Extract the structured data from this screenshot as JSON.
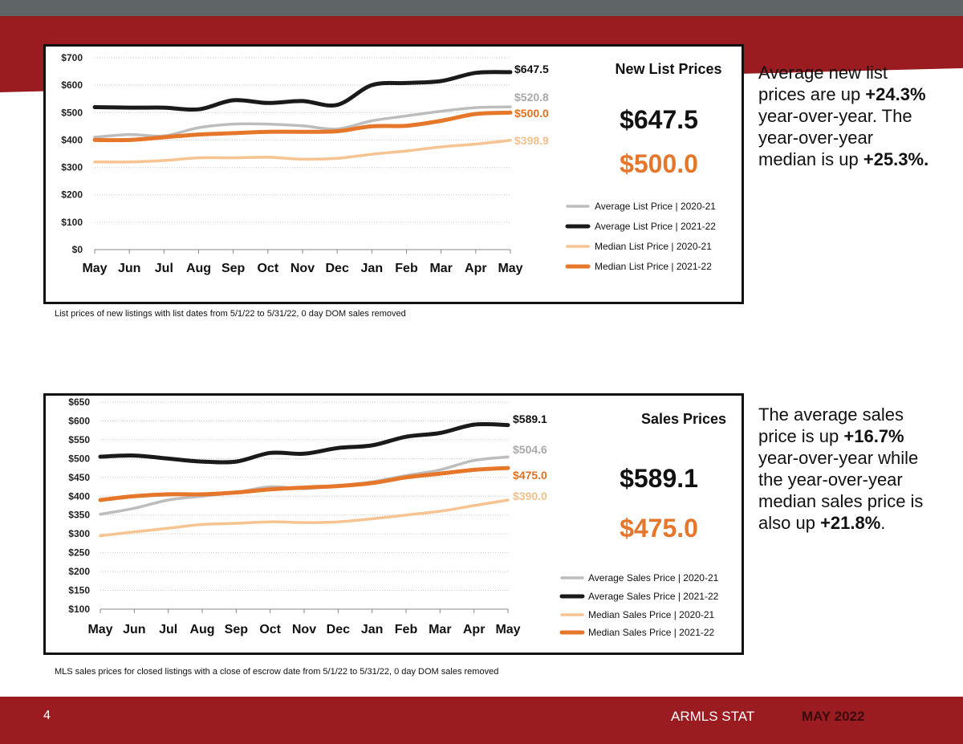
{
  "footer": {
    "page_number": "4",
    "publication": "ARMLS STAT",
    "date": "MAY 2022"
  },
  "colors": {
    "brand_red": "#9a1b20",
    "top_bar": "#5f6466",
    "avg_prev": "#bdbdbd",
    "avg_curr": "#1a1a1a",
    "med_prev": "#f6c391",
    "med_curr": "#e5762a"
  },
  "new_list": {
    "caption": "List prices of new listings with list dates from 5/1/22 to 5/31/22, 0 day DOM sales removed",
    "text": {
      "t1": "Average new list prices are up ",
      "v1": "+24.3%",
      "t2": " year-over-year. The year-over-year median is up ",
      "v2": "+25.3%."
    }
  },
  "sales": {
    "caption": "MLS sales prices for closed listings with a close of escrow date from 5/1/22 to 5/31/22, 0 day DOM sales removed",
    "text": {
      "t1": "The average sales price is up ",
      "v1": "+16.7%",
      "t2": " year-over-year while the year-over-year median sales price is also up ",
      "v2": "+21.8%",
      "t3": "."
    }
  },
  "chart_data": [
    {
      "type": "line",
      "title": "New List Prices",
      "categories": [
        "May",
        "Jun",
        "Jul",
        "Aug",
        "Sep",
        "Oct",
        "Nov",
        "Dec",
        "Jan",
        "Feb",
        "Mar",
        "Apr",
        "May"
      ],
      "y_ticks": [
        "$0",
        "$100",
        "$200",
        "$300",
        "$400",
        "$500",
        "$600",
        "$700"
      ],
      "ylim": [
        0,
        700
      ],
      "grid": true,
      "legend_position": "right",
      "big_values": {
        "average": "$647.5",
        "median": "$500.0"
      },
      "series": [
        {
          "name": "Average List Price | 2020-21",
          "end_label": "$520.8",
          "values": [
            410,
            420,
            415,
            445,
            458,
            458,
            452,
            440,
            470,
            488,
            505,
            518,
            520.8
          ]
        },
        {
          "name": "Average List Price | 2021-22",
          "end_label": "$647.5",
          "values": [
            520,
            518,
            518,
            512,
            545,
            535,
            542,
            528,
            600,
            608,
            615,
            645,
            647.5
          ]
        },
        {
          "name": "Median List Price | 2020-21",
          "end_label": "$398.9",
          "values": [
            320,
            320,
            325,
            335,
            335,
            337,
            330,
            333,
            348,
            360,
            375,
            385,
            398.9
          ]
        },
        {
          "name": "Median List Price | 2021-22",
          "end_label": "$500.0",
          "values": [
            400,
            400,
            410,
            420,
            425,
            430,
            430,
            432,
            450,
            452,
            470,
            495,
            500
          ]
        }
      ]
    },
    {
      "type": "line",
      "title": "Sales Prices",
      "categories": [
        "May",
        "Jun",
        "Jul",
        "Aug",
        "Sep",
        "Oct",
        "Nov",
        "Dec",
        "Jan",
        "Feb",
        "Mar",
        "Apr",
        "May"
      ],
      "y_ticks": [
        "$100",
        "$150",
        "$200",
        "$250",
        "$300",
        "$350",
        "$400",
        "$450",
        "$500",
        "$550",
        "$600",
        "$650"
      ],
      "ylim": [
        100,
        650
      ],
      "grid": true,
      "legend_position": "bottom-right",
      "big_values": {
        "average": "$589.1",
        "median": "$475.0"
      },
      "series": [
        {
          "name": "Average Sales Price | 2020-21",
          "end_label": "$504.6",
          "values": [
            352,
            368,
            390,
            400,
            410,
            425,
            420,
            428,
            438,
            455,
            470,
            495,
            504.6
          ]
        },
        {
          "name": "Average Sales Price | 2021-22",
          "end_label": "$589.1",
          "values": [
            505,
            508,
            500,
            492,
            492,
            515,
            513,
            528,
            535,
            558,
            568,
            590,
            589.1
          ]
        },
        {
          "name": "Median Sales Price | 2020-21",
          "end_label": "$390.0",
          "values": [
            295,
            305,
            315,
            325,
            328,
            332,
            330,
            332,
            340,
            350,
            360,
            375,
            390
          ]
        },
        {
          "name": "Median Sales Price | 2021-22",
          "end_label": "$475.0",
          "values": [
            390,
            400,
            405,
            405,
            410,
            418,
            423,
            427,
            435,
            450,
            460,
            470,
            475
          ]
        }
      ]
    }
  ]
}
